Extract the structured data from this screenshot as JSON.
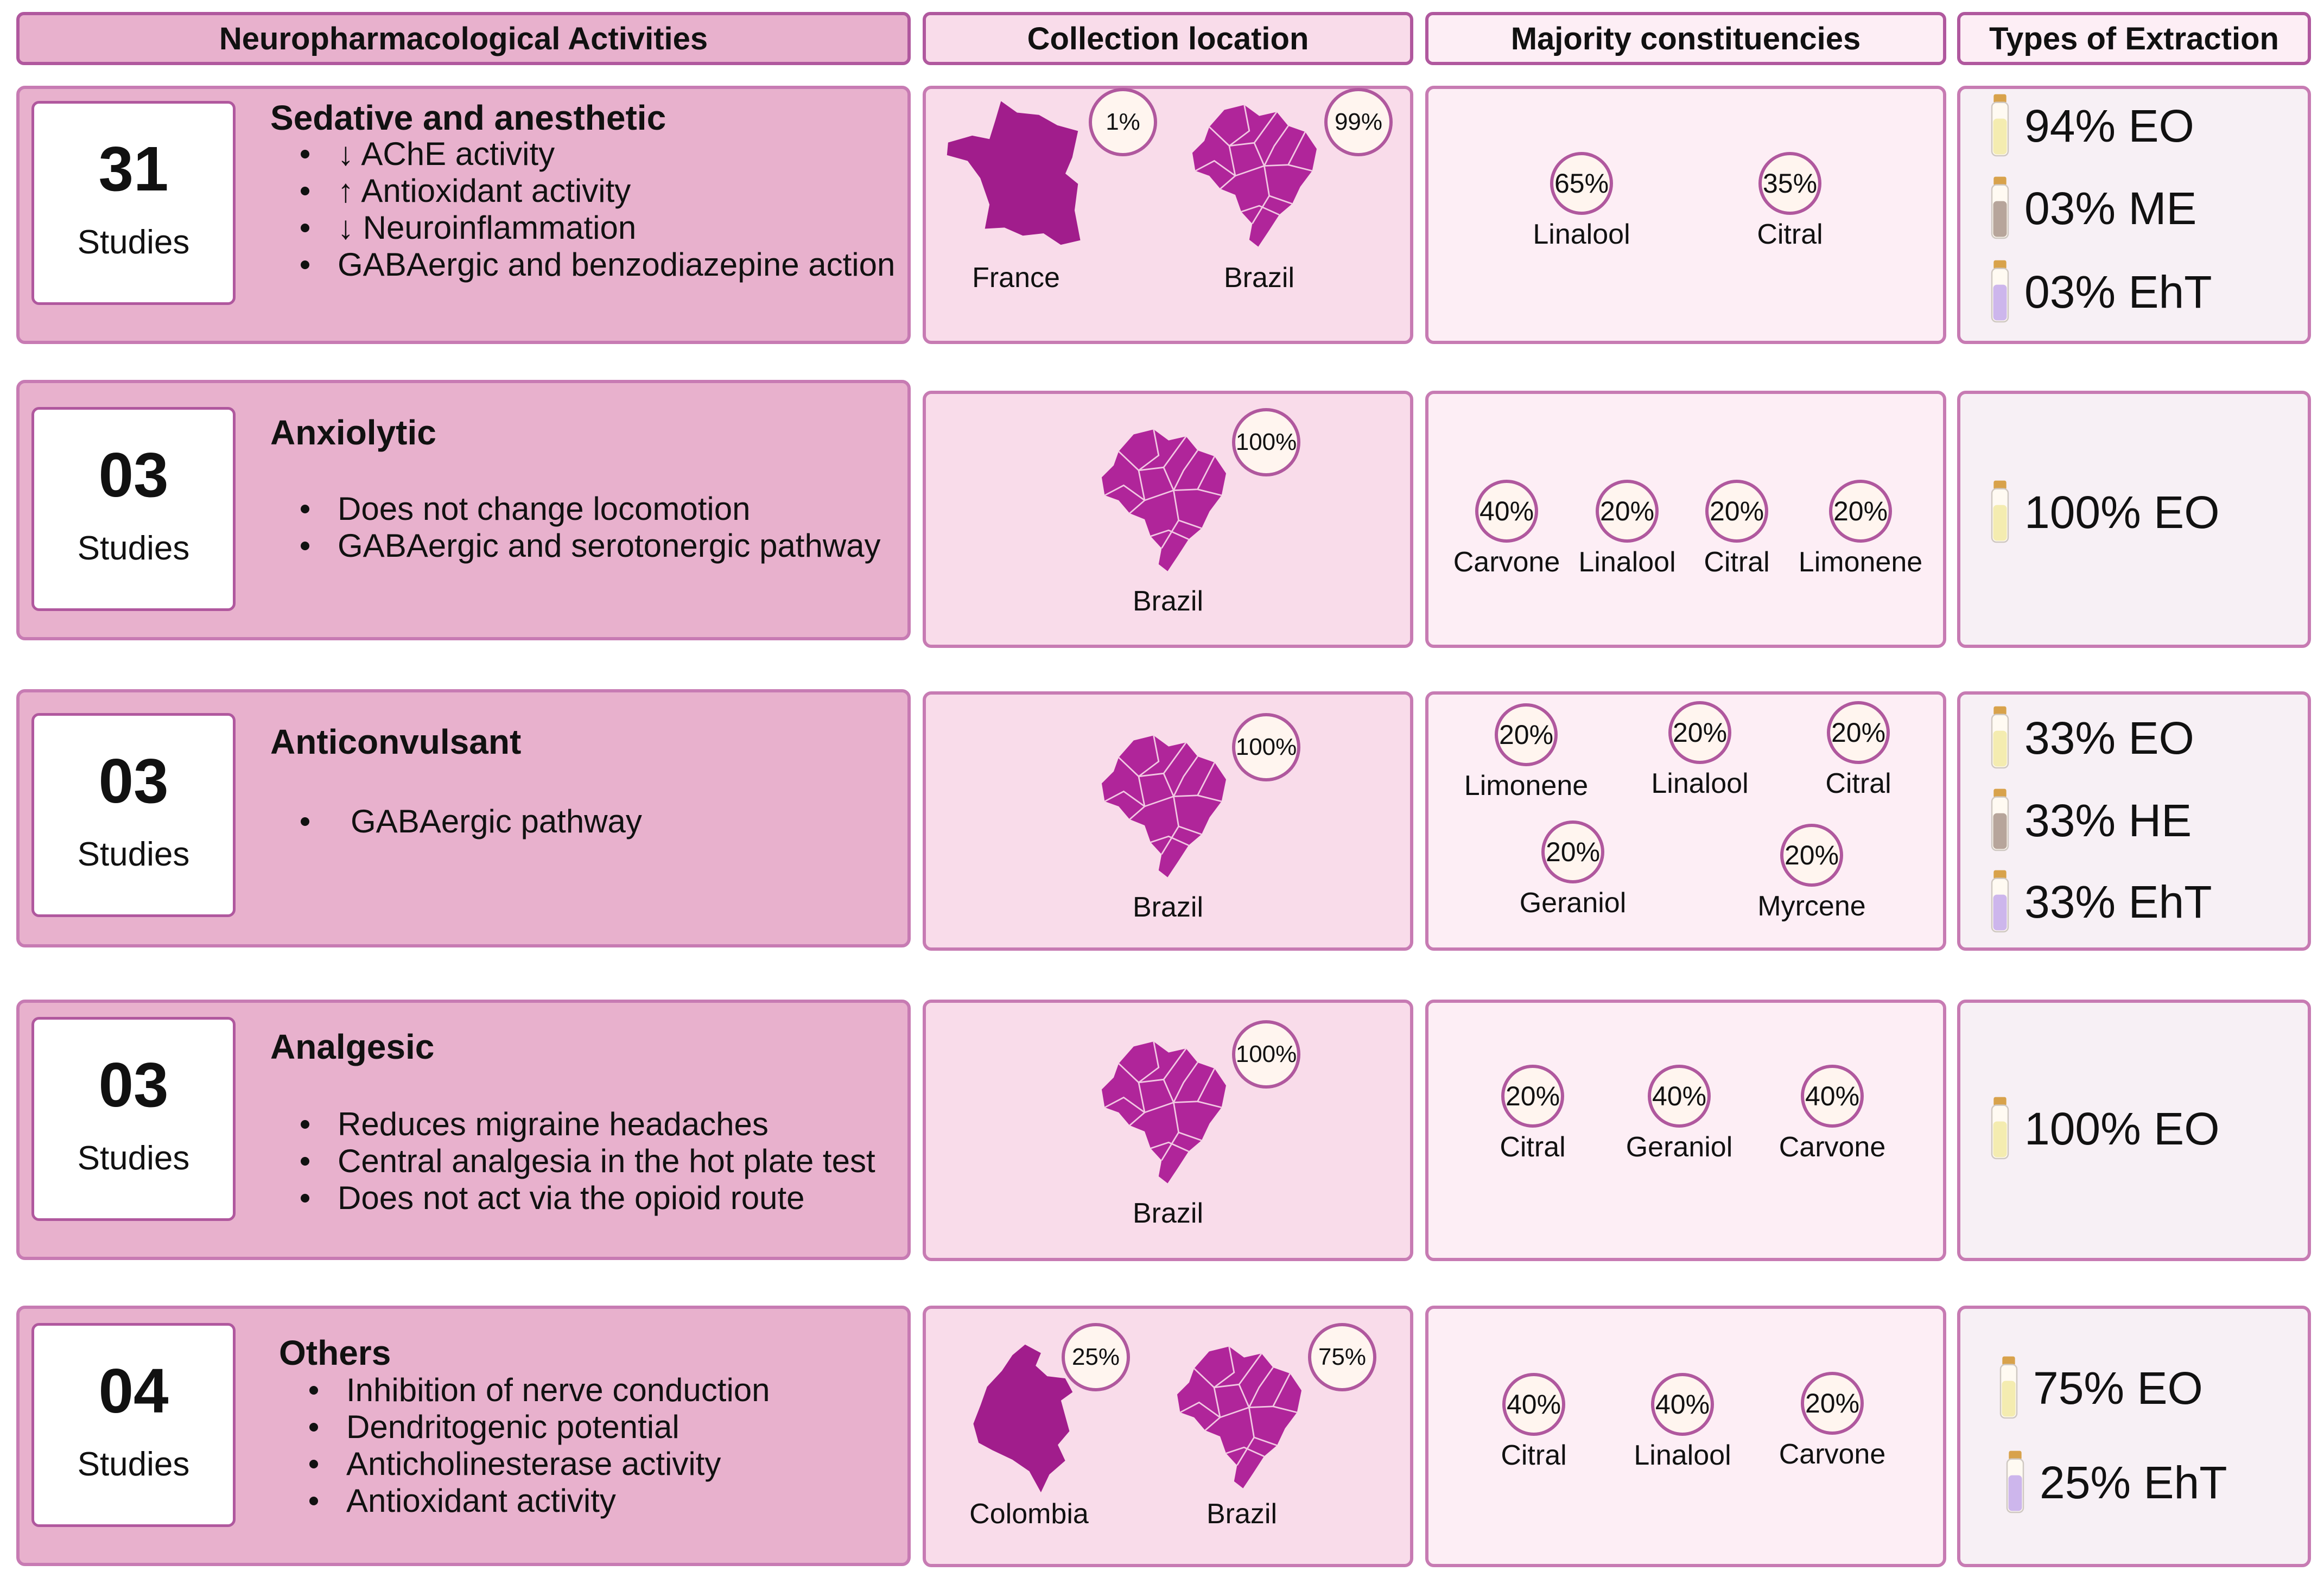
{
  "headers": {
    "activities": "Neuropharmacological Activities",
    "location": "Collection location",
    "constituents": "Majority constituencies",
    "extraction": "Types of Extraction"
  },
  "studies_label": "Studies",
  "colors": {
    "accent": "#b0589e",
    "map": "#b0259a",
    "panel": "#e8b1cd"
  },
  "rows": [
    {
      "count": "31",
      "title": "Sedative and anesthetic",
      "bullets": [
        "↓ AChE activity",
        "↑ Antioxidant activity",
        "↓ Neuroinflammation",
        "GABAergic and benzodiazepine action"
      ],
      "locations": [
        {
          "name": "France",
          "pct": "1%",
          "icon": "france-map-icon"
        },
        {
          "name": "Brazil",
          "pct": "99%",
          "icon": "brazil-map-icon"
        }
      ],
      "constituents": [
        {
          "name": "Linalool",
          "pct": "65%"
        },
        {
          "name": "Citral",
          "pct": "35%"
        }
      ],
      "extraction": [
        {
          "label": "94% EO",
          "vial": "yellow"
        },
        {
          "label": "03% ME",
          "vial": "brown"
        },
        {
          "label": "03% EhT",
          "vial": "purple"
        }
      ]
    },
    {
      "count": "03",
      "title": "Anxiolytic",
      "bullets": [
        "Does not change locomotion",
        "GABAergic and serotonergic pathway"
      ],
      "locations": [
        {
          "name": "Brazil",
          "pct": "100%",
          "icon": "brazil-map-icon"
        }
      ],
      "constituents": [
        {
          "name": "Carvone",
          "pct": "40%"
        },
        {
          "name": "Linalool",
          "pct": "20%"
        },
        {
          "name": "Citral",
          "pct": "20%"
        },
        {
          "name": "Limonene",
          "pct": "20%"
        }
      ],
      "extraction": [
        {
          "label": "100% EO",
          "vial": "yellow"
        }
      ]
    },
    {
      "count": "03",
      "title": "Anticonvulsant",
      "bullets": [
        "GABAergic pathway"
      ],
      "locations": [
        {
          "name": "Brazil",
          "pct": "100%",
          "icon": "brazil-map-icon"
        }
      ],
      "constituents": [
        {
          "name": "Limonene",
          "pct": "20%"
        },
        {
          "name": "Linalool",
          "pct": "20%"
        },
        {
          "name": "Citral",
          "pct": "20%"
        },
        {
          "name": "Geraniol",
          "pct": "20%"
        },
        {
          "name": "Myrcene",
          "pct": "20%"
        }
      ],
      "extraction": [
        {
          "label": "33% EO",
          "vial": "yellow"
        },
        {
          "label": "33% HE",
          "vial": "brown"
        },
        {
          "label": "33% EhT",
          "vial": "purple"
        }
      ]
    },
    {
      "count": "03",
      "title": "Analgesic",
      "bullets": [
        "Reduces migraine headaches",
        "Central analgesia in the hot plate test",
        "Does not act via the opioid route"
      ],
      "locations": [
        {
          "name": "Brazil",
          "pct": "100%",
          "icon": "brazil-map-icon"
        }
      ],
      "constituents": [
        {
          "name": "Citral",
          "pct": "20%"
        },
        {
          "name": "Geraniol",
          "pct": "40%"
        },
        {
          "name": "Carvone",
          "pct": "40%"
        }
      ],
      "extraction": [
        {
          "label": "100% EO",
          "vial": "yellow"
        }
      ]
    },
    {
      "count": "04",
      "title": "Others",
      "bullets": [
        "Inhibition of nerve conduction",
        "Dendritogenic potential",
        "Anticholinesterase activity",
        "Antioxidant activity"
      ],
      "locations": [
        {
          "name": "Colombia",
          "pct": "25%",
          "icon": "colombia-map-icon"
        },
        {
          "name": "Brazil",
          "pct": "75%",
          "icon": "brazil-map-icon"
        }
      ],
      "constituents": [
        {
          "name": "Citral",
          "pct": "40%"
        },
        {
          "name": "Linalool",
          "pct": "40%"
        },
        {
          "name": "Carvone",
          "pct": "20%"
        }
      ],
      "extraction": [
        {
          "label": "75% EO",
          "vial": "yellow"
        },
        {
          "label": "25% EhT",
          "vial": "purple"
        }
      ]
    }
  ]
}
